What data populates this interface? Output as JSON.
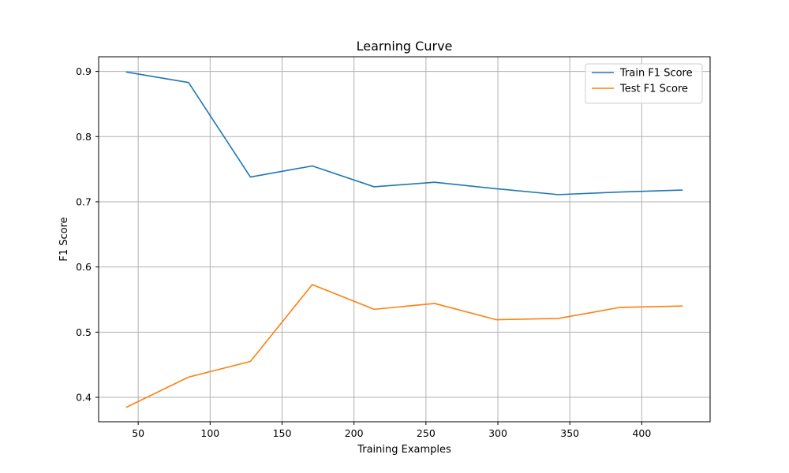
{
  "chart_data": {
    "type": "line",
    "title": "Learning Curve",
    "xlabel": "Training Examples",
    "ylabel": "F1 Score",
    "xlim": [
      22.5,
      447.5
    ],
    "ylim": [
      0.3625,
      0.9225
    ],
    "xticks": [
      50,
      100,
      150,
      200,
      250,
      300,
      350,
      400
    ],
    "yticks": [
      0.4,
      0.5,
      0.6,
      0.7,
      0.8,
      0.9
    ],
    "xtick_labels": [
      "50",
      "100",
      "150",
      "200",
      "250",
      "300",
      "350",
      "400"
    ],
    "ytick_labels": [
      "0.4",
      "0.5",
      "0.6",
      "0.7",
      "0.8",
      "0.9"
    ],
    "grid": true,
    "legend_position": "top-right",
    "x": [
      42,
      85,
      128,
      171,
      214,
      256,
      299,
      342,
      385,
      428
    ],
    "series": [
      {
        "name": "Train F1 Score",
        "color": "#1f77b4",
        "values": [
          0.899,
          0.883,
          0.738,
          0.755,
          0.723,
          0.73,
          0.72,
          0.711,
          0.715,
          0.718
        ]
      },
      {
        "name": "Test F1 Score",
        "color": "#ff7f0e",
        "values": [
          0.385,
          0.431,
          0.455,
          0.573,
          0.535,
          0.544,
          0.519,
          0.521,
          0.538,
          0.54
        ]
      }
    ]
  }
}
